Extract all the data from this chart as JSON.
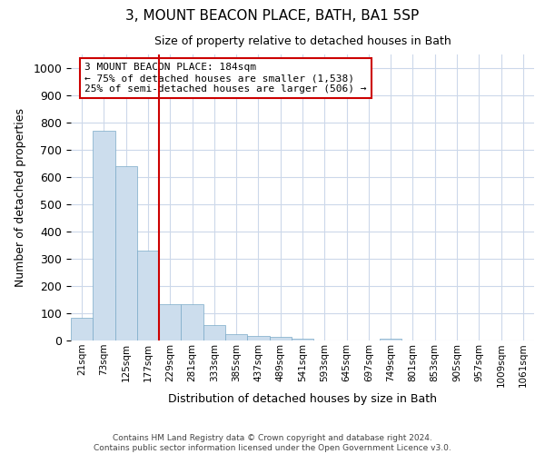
{
  "title": "3, MOUNT BEACON PLACE, BATH, BA1 5SP",
  "subtitle": "Size of property relative to detached houses in Bath",
  "xlabel": "Distribution of detached houses by size in Bath",
  "ylabel": "Number of detached properties",
  "footer_line1": "Contains HM Land Registry data © Crown copyright and database right 2024.",
  "footer_line2": "Contains public sector information licensed under the Open Government Licence v3.0.",
  "categories": [
    "21sqm",
    "73sqm",
    "125sqm",
    "177sqm",
    "229sqm",
    "281sqm",
    "333sqm",
    "385sqm",
    "437sqm",
    "489sqm",
    "541sqm",
    "593sqm",
    "645sqm",
    "697sqm",
    "749sqm",
    "801sqm",
    "853sqm",
    "905sqm",
    "957sqm",
    "1009sqm",
    "1061sqm"
  ],
  "values": [
    82,
    770,
    640,
    330,
    132,
    132,
    58,
    22,
    17,
    13,
    8,
    0,
    0,
    0,
    8,
    0,
    0,
    0,
    0,
    0,
    0
  ],
  "bar_color": "#ccdded",
  "bar_edge_color": "#7aaac8",
  "ylim": [
    0,
    1050
  ],
  "yticks": [
    0,
    100,
    200,
    300,
    400,
    500,
    600,
    700,
    800,
    900,
    1000
  ],
  "vline_x": 3.5,
  "vline_color": "#cc0000",
  "annotation_text": "3 MOUNT BEACON PLACE: 184sqm\n← 75% of detached houses are smaller (1,538)\n25% of semi-detached houses are larger (506) →",
  "annotation_box_color": "#ffffff",
  "annotation_box_edge": "#cc0000",
  "background_color": "#ffffff",
  "grid_color": "#ccd8ea"
}
